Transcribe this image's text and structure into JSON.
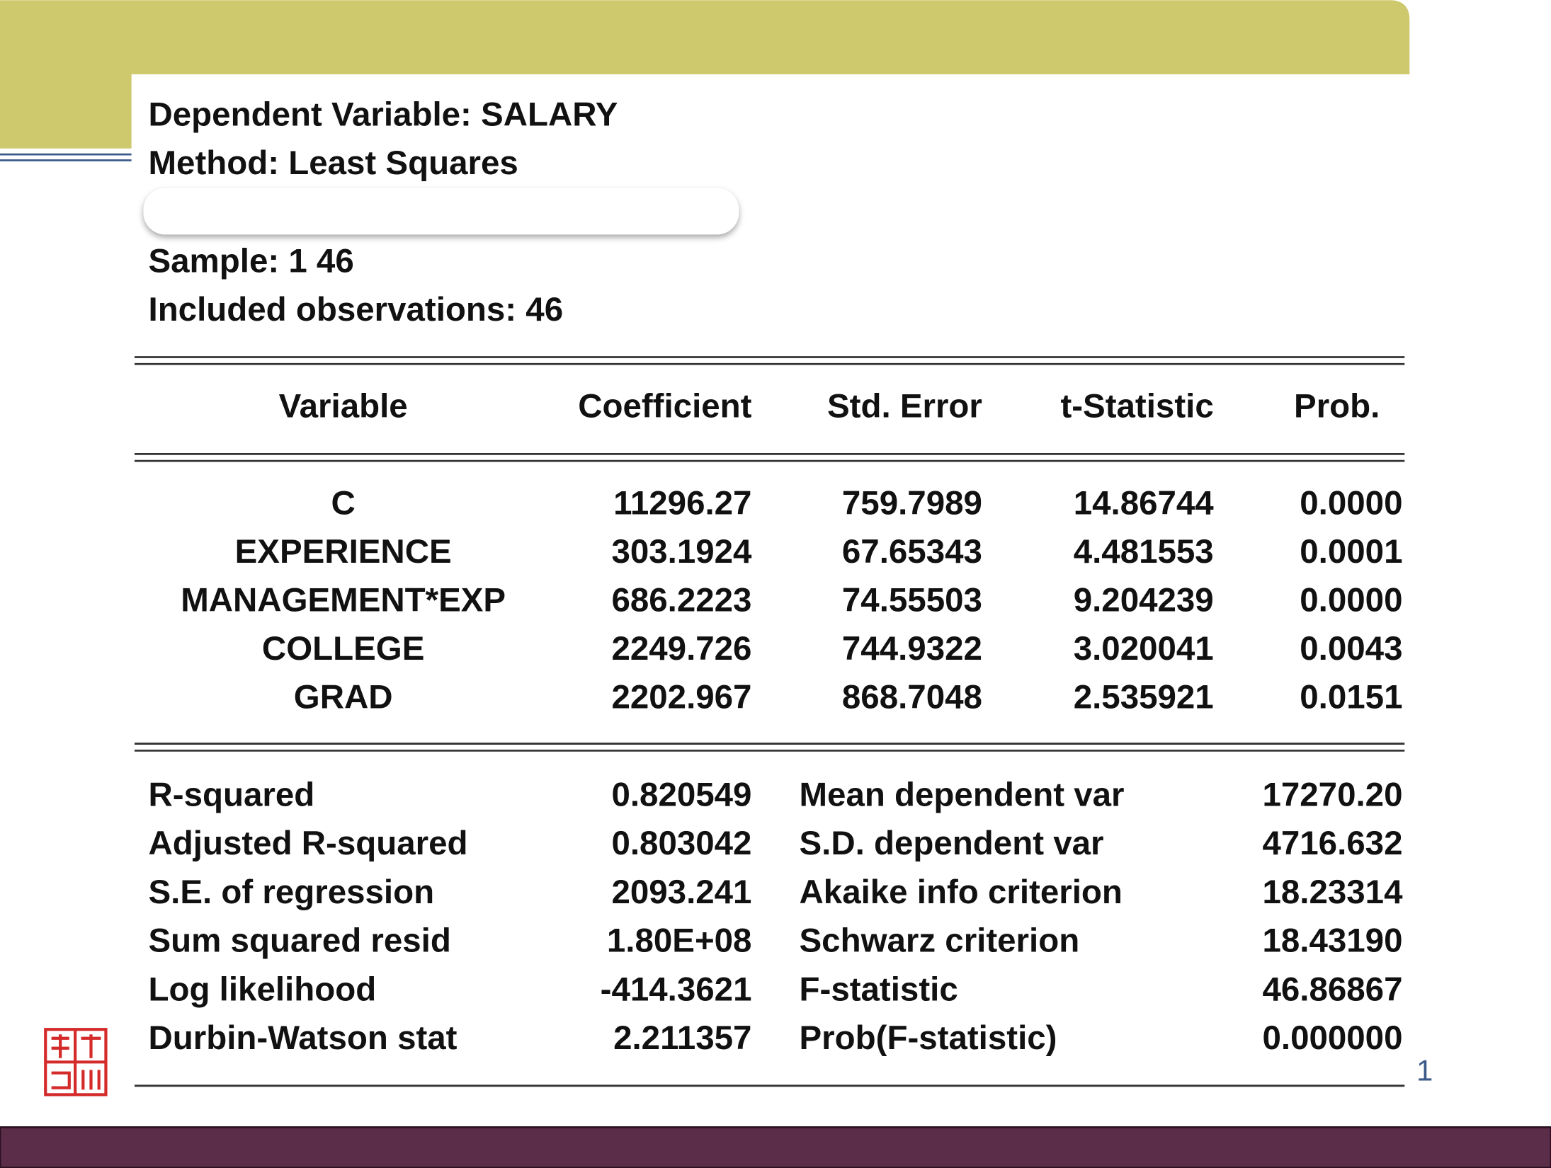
{
  "header": {
    "lines": [
      "Dependent Variable: SALARY",
      "Method: Least Squares",
      "Sample: 1 46",
      "Included observations: 46"
    ]
  },
  "table": {
    "columns": [
      "Variable",
      "Coefficient",
      "Std. Error",
      "t-Statistic",
      "Prob."
    ],
    "rows": [
      [
        "C",
        "11296.27",
        "759.7989",
        "14.86744",
        "0.0000"
      ],
      [
        "EXPERIENCE",
        "303.1924",
        "67.65343",
        "4.481553",
        "0.0001"
      ],
      [
        "MANAGEMENT*EXP",
        "686.2223",
        "74.55503",
        "9.204239",
        "0.0000"
      ],
      [
        "COLLEGE",
        "2249.726",
        "744.9322",
        "3.020041",
        "0.0043"
      ],
      [
        "GRAD",
        "2202.967",
        "868.7048",
        "2.535921",
        "0.0151"
      ]
    ]
  },
  "stats": {
    "rows": [
      [
        "R-squared",
        "0.820549",
        "Mean dependent var",
        "17270.20"
      ],
      [
        "Adjusted R-squared",
        "0.803042",
        "S.D. dependent var",
        "4716.632"
      ],
      [
        "S.E. of regression",
        "2093.241",
        "Akaike info criterion",
        "18.23314"
      ],
      [
        "Sum squared resid",
        "1.80E+08",
        "Schwarz criterion",
        "18.43190"
      ],
      [
        "Log likelihood",
        "-414.3621",
        "F-statistic",
        "46.86867"
      ],
      [
        "Durbin-Watson stat",
        "2.211357",
        "Prob(F-statistic)",
        "0.000000"
      ]
    ]
  },
  "page_number": "1"
}
